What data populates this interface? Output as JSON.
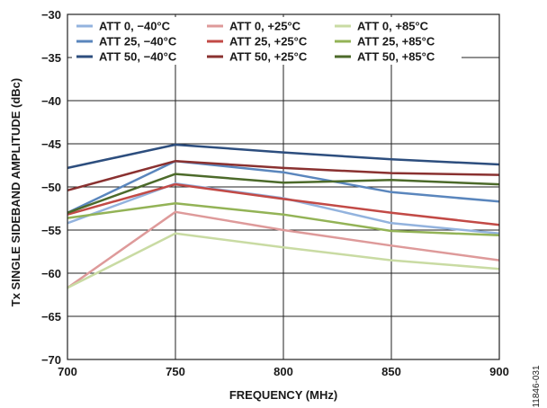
{
  "chart_data": {
    "type": "line",
    "xlabel": "FREQUENCY (MHz)",
    "ylabel": "Tx SINGLE SIDEBAND AMPLITUDE (dBc)",
    "xlim": [
      700,
      900
    ],
    "ylim": [
      -70,
      -30
    ],
    "x_ticks": [
      700,
      750,
      800,
      850,
      900
    ],
    "y_ticks": [
      -70,
      -65,
      -60,
      -55,
      -50,
      -45,
      -40,
      -35,
      -30
    ],
    "grid": true,
    "legend_position": "top",
    "x": [
      700,
      750,
      800,
      850,
      900
    ],
    "series": [
      {
        "name": "ATT 0, −40°C",
        "color": "#93b3de",
        "values": [
          -54.2,
          -49.6,
          -51.3,
          -54.2,
          -55.4
        ]
      },
      {
        "name": "ATT 25, −40°C",
        "color": "#5a86bd",
        "values": [
          -53.0,
          -47.0,
          -48.3,
          -50.6,
          -51.7
        ]
      },
      {
        "name": "ATT 50, −40°C",
        "color": "#2d4e7e",
        "values": [
          -47.8,
          -45.1,
          -46.0,
          -46.8,
          -47.4
        ]
      },
      {
        "name": "ATT 0, +25°C",
        "color": "#de9a9a",
        "values": [
          -61.7,
          -52.9,
          -55.0,
          -56.8,
          -58.5
        ]
      },
      {
        "name": "ATT 25, +25°C",
        "color": "#c24a46",
        "values": [
          -53.2,
          -49.7,
          -51.4,
          -53.0,
          -54.4
        ]
      },
      {
        "name": "ATT 50, +25°C",
        "color": "#8a3130",
        "values": [
          -50.4,
          -47.0,
          -47.8,
          -48.4,
          -48.6
        ]
      },
      {
        "name": "ATT 0, +85°C",
        "color": "#c9dba3",
        "values": [
          -61.7,
          -55.4,
          -57.0,
          -58.5,
          -59.5
        ]
      },
      {
        "name": "ATT 25, +85°C",
        "color": "#93b356",
        "values": [
          -53.6,
          -51.9,
          -53.2,
          -55.1,
          -55.6
        ]
      },
      {
        "name": "ATT 50, +85°C",
        "color": "#4c6a2a",
        "values": [
          -53.0,
          -48.5,
          -49.5,
          -49.2,
          -49.7
        ]
      }
    ],
    "figure_id": "11846-031"
  }
}
